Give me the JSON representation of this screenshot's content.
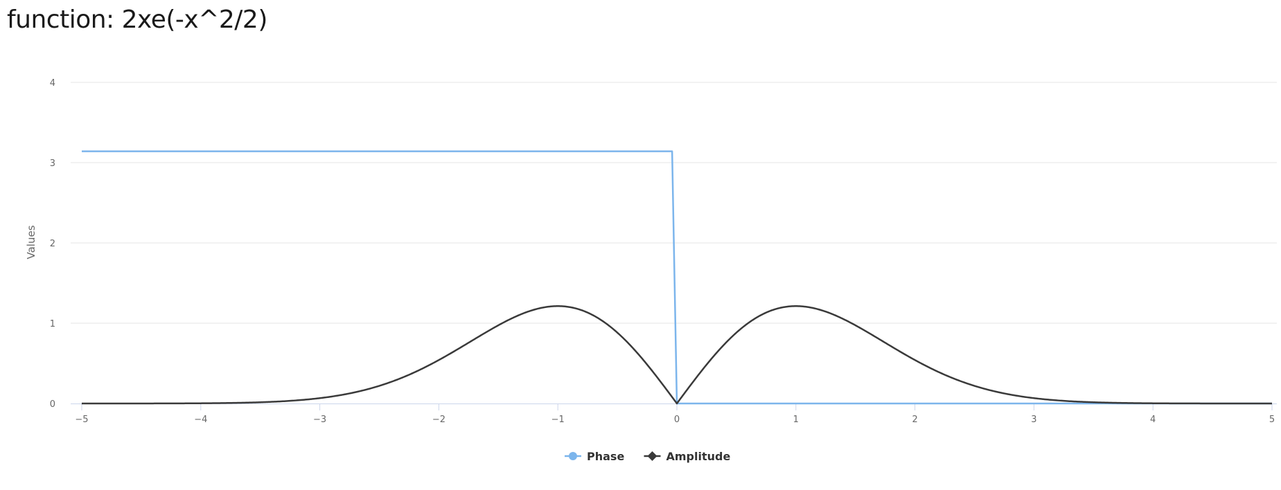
{
  "page": {
    "title": "function: 2xe(-x^2/2)"
  },
  "chart_data": {
    "type": "line",
    "title": "function: 2xe(-x^2/2)",
    "xlabel": "",
    "ylabel": "Values",
    "xlim": [
      -5,
      5
    ],
    "ylim": [
      0,
      4
    ],
    "xticks": [
      -5,
      -4,
      -3,
      -2,
      -1,
      0,
      1,
      2,
      3,
      4,
      5
    ],
    "xtick_labels": [
      "−5",
      "−4",
      "−3",
      "−2",
      "−1",
      "0",
      "1",
      "2",
      "3",
      "4",
      "5"
    ],
    "yticks": [
      0,
      1,
      2,
      3,
      4
    ],
    "ytick_labels": [
      "0",
      "1",
      "2",
      "3",
      "4"
    ],
    "grid": "horizontal",
    "legend_position": "bottom-center",
    "series": [
      {
        "name": "Phase",
        "color": "#7cb5ec",
        "marker": "circle",
        "x": [
          -5,
          -0.04,
          0,
          5
        ],
        "y": [
          3.1416,
          3.1416,
          0,
          0
        ]
      },
      {
        "name": "Amplitude",
        "color": "#3a3a3a",
        "marker": "diamond",
        "x": [
          -5,
          -4.5,
          -4,
          -3.5,
          -3,
          -2.75,
          -2.5,
          -2.25,
          -2,
          -1.75,
          -1.5,
          -1.25,
          -1,
          -0.75,
          -0.5,
          -0.25,
          0,
          0.25,
          0.5,
          0.75,
          1,
          1.25,
          1.5,
          1.75,
          2,
          2.25,
          2.5,
          2.75,
          3,
          3.5,
          4,
          4.5,
          5
        ],
        "y": [
          0.0,
          0.0,
          0.0003,
          0.0153,
          0.0666,
          0.1235,
          0.2197,
          0.3578,
          0.5413,
          0.7535,
          0.9739,
          1.1449,
          1.2131,
          1.1318,
          0.8825,
          0.4845,
          0.0,
          0.4845,
          0.8825,
          1.1318,
          1.2131,
          1.1449,
          0.9739,
          0.7535,
          0.5413,
          0.3578,
          0.2197,
          0.1235,
          0.0666,
          0.0153,
          0.0003,
          0.0,
          0.0
        ]
      }
    ]
  }
}
